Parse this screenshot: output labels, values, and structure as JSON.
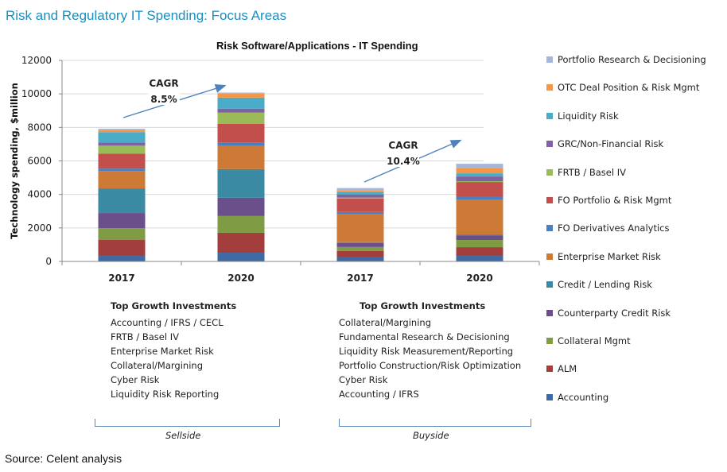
{
  "page": {
    "title": "Risk and Regulatory IT Spending: Focus Areas",
    "source": "Source: Celent analysis"
  },
  "chart_data": {
    "type": "bar",
    "stacked": true,
    "title": "Risk Software/Applications - IT Spending",
    "xlabel": "",
    "ylabel": "Technology spending, $million",
    "ylim": [
      0,
      12000
    ],
    "yticks": [
      0,
      2000,
      4000,
      6000,
      8000,
      10000,
      12000
    ],
    "grid": true,
    "legend_position": "right",
    "categories": [
      "2017",
      "2020",
      "2017",
      "2020"
    ],
    "groups": [
      "Sellside",
      "Sellside",
      "Buyside",
      "Buyside"
    ],
    "series": [
      {
        "name": "Accounting",
        "color": "#3f6aa3",
        "values": [
          330,
          520,
          240,
          330
        ]
      },
      {
        "name": "ALM",
        "color": "#a23e3b",
        "values": [
          950,
          1190,
          380,
          520
        ]
      },
      {
        "name": "Collateral Mgmt",
        "color": "#7f9c45",
        "values": [
          710,
          1000,
          240,
          430
        ]
      },
      {
        "name": "Counterparty Credit Risk",
        "color": "#6a4f8b",
        "values": [
          900,
          1090,
          240,
          280
        ]
      },
      {
        "name": "Credit / Lending Risk",
        "color": "#3a8aa3",
        "values": [
          1470,
          1710,
          50,
          50
        ]
      },
      {
        "name": "Enterprise Market Risk",
        "color": "#cc7a35",
        "values": [
          1040,
          1380,
          1660,
          2090
        ]
      },
      {
        "name": "FO Derivatives Analytics",
        "color": "#4a7fc0",
        "values": [
          140,
          190,
          140,
          190
        ]
      },
      {
        "name": "FO Portfolio & Risk Mgmt",
        "color": "#c24f4c",
        "values": [
          900,
          1140,
          810,
          850
        ]
      },
      {
        "name": "FRTB / Basel IV",
        "color": "#9bbb59",
        "values": [
          470,
          660,
          50,
          50
        ]
      },
      {
        "name": "GRC/Non-Financial Risk",
        "color": "#7e62a1",
        "values": [
          190,
          240,
          190,
          280
        ]
      },
      {
        "name": "Liquidity Risk",
        "color": "#4aacc6",
        "values": [
          620,
          660,
          140,
          190
        ]
      },
      {
        "name": "OTC Deal Position & Risk Mgmt",
        "color": "#f79646",
        "values": [
          140,
          240,
          100,
          330
        ]
      },
      {
        "name": "Portfolio Research & Decisioning",
        "color": "#a6b8d9",
        "values": [
          60,
          60,
          140,
          240
        ]
      }
    ],
    "annotations": [
      {
        "label": "CAGR",
        "value": "8.5%",
        "group": "Sellside"
      },
      {
        "label": "CAGR",
        "value": "10.4%",
        "group": "Buyside"
      }
    ]
  },
  "investments": {
    "sellside": {
      "heading": "Top Growth Investments",
      "items": [
        "Accounting / IFRS / CECL",
        "FRTB / Basel IV",
        "Enterprise Market Risk",
        "Collateral/Margining",
        "Cyber Risk",
        "Liquidity Risk Reporting"
      ],
      "group_label": "Sellside"
    },
    "buyside": {
      "heading": "Top Growth Investments",
      "items": [
        "Collateral/Margining",
        "Fundamental Research & Decisioning",
        "Liquidity Risk Measurement/Reporting",
        "Portfolio Construction/Risk Optimization",
        "Cyber Risk",
        "Accounting / IFRS"
      ],
      "group_label": "Buyside"
    }
  }
}
